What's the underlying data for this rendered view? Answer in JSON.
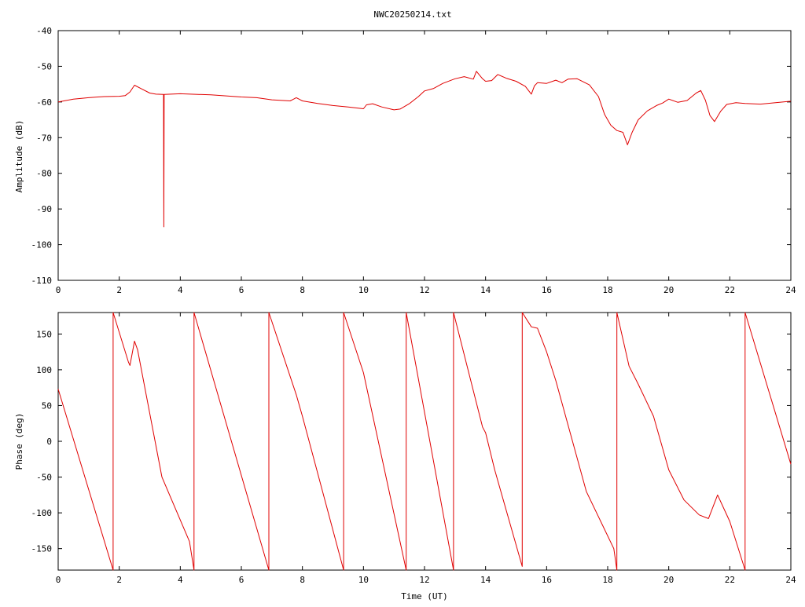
{
  "title": "NWC20250214.txt",
  "colors": {
    "trace": "#e00000",
    "axis": "#000000",
    "background": "#ffffff"
  },
  "chart_data": [
    {
      "type": "line",
      "title": "NWC20250214.txt",
      "xlabel": "",
      "ylabel": "Amplitude (dB)",
      "xlim": [
        0,
        24
      ],
      "ylim": [
        -110,
        -40
      ],
      "xticks": [
        0,
        2,
        4,
        6,
        8,
        10,
        12,
        14,
        16,
        18,
        20,
        22,
        24
      ],
      "xtick_labels": [
        "0",
        "2",
        "4",
        "6",
        "8",
        "10",
        "12",
        "14",
        "16",
        "18",
        "20",
        "22",
        "24"
      ],
      "yticks": [
        -40,
        -50,
        -60,
        -70,
        -80,
        -90,
        -100,
        -110
      ],
      "ytick_labels": [
        "-40",
        "-50",
        "-60",
        "-70",
        "-80",
        "-90",
        "-100",
        "-110"
      ],
      "grid": false,
      "series": [
        {
          "x": [
            0,
            0.5,
            1,
            1.5,
            2,
            2.2,
            2.35,
            2.5,
            2.7,
            3,
            3.2,
            3.45,
            3.46,
            3.47,
            4,
            5,
            6,
            6.5,
            7,
            7.6,
            7.8,
            8,
            8.5,
            9,
            9.5,
            10,
            10.1,
            10.3,
            10.6,
            11,
            11.2,
            11.5,
            11.8,
            12,
            12.3,
            12.6,
            13,
            13.3,
            13.6,
            13.7,
            13.9,
            14,
            14.2,
            14.4,
            14.7,
            15,
            15.3,
            15.5,
            15.6,
            15.7,
            16,
            16.3,
            16.5,
            16.7,
            17,
            17.4,
            17.7,
            17.9,
            18.1,
            18.3,
            18.5,
            18.65,
            18.8,
            19,
            19.3,
            19.6,
            19.8,
            20,
            20.3,
            20.6,
            20.9,
            21.05,
            21.2,
            21.35,
            21.5,
            21.7,
            21.9,
            22.2,
            22.5,
            23,
            23.5,
            24
          ],
          "y": [
            -60,
            -59.2,
            -58.8,
            -58.5,
            -58.4,
            -58.2,
            -57.2,
            -55.3,
            -56.2,
            -57.5,
            -57.8,
            -57.9,
            -95,
            -57.9,
            -57.7,
            -58,
            -58.6,
            -58.8,
            -59.4,
            -59.7,
            -58.8,
            -59.7,
            -60.4,
            -61,
            -61.4,
            -61.9,
            -60.8,
            -60.5,
            -61.4,
            -62.2,
            -62,
            -60.5,
            -58.5,
            -56.9,
            -56.2,
            -54.8,
            -53.5,
            -52.9,
            -53.6,
            -51.4,
            -53.5,
            -54.2,
            -54,
            -52.3,
            -53.4,
            -54.2,
            -55.6,
            -57.8,
            -55.5,
            -54.6,
            -54.8,
            -53.9,
            -54.6,
            -53.6,
            -53.5,
            -55.2,
            -58.5,
            -63.5,
            -66.5,
            -68,
            -68.5,
            -72,
            -68.5,
            -65,
            -62.5,
            -61,
            -60.3,
            -59.2,
            -60.1,
            -59.6,
            -57.5,
            -56.8,
            -59.5,
            -63.8,
            -65.5,
            -62.6,
            -60.7,
            -60.2,
            -60.4,
            -60.6,
            -60.2,
            -59.8
          ]
        }
      ]
    },
    {
      "type": "line",
      "title": "",
      "xlabel": "Time (UT)",
      "ylabel": "Phase (deg)",
      "xlim": [
        0,
        24
      ],
      "ylim": [
        -180,
        180
      ],
      "xticks": [
        0,
        2,
        4,
        6,
        8,
        10,
        12,
        14,
        16,
        18,
        20,
        22,
        24
      ],
      "xtick_labels": [
        "0",
        "2",
        "4",
        "6",
        "8",
        "10",
        "12",
        "14",
        "16",
        "18",
        "20",
        "22",
        "24"
      ],
      "yticks": [
        150,
        100,
        50,
        0,
        -50,
        -100,
        -150
      ],
      "ytick_labels": [
        "150",
        "100",
        "50",
        "0",
        "-50",
        "-100",
        "-150"
      ],
      "grid": false,
      "series": [
        {
          "x": [
            0,
            1.8,
            1.8,
            2.3,
            2.35,
            2.5,
            2.6,
            3.4,
            3.5,
            4.3,
            4.45,
            4.45,
            6.9,
            6.9,
            7.8,
            8,
            9.35,
            9.35,
            10,
            11.4,
            11.4,
            12.95,
            12.95,
            13.9,
            14,
            14.3,
            15.2,
            15.2,
            15.5,
            15.7,
            16,
            16.3,
            17.3,
            18.2,
            18.3,
            18.3,
            18.7,
            19,
            19.5,
            20,
            20.5,
            21,
            21.3,
            21.6,
            22,
            22.5,
            22.5,
            24
          ],
          "y": [
            73,
            -180,
            180,
            111,
            106,
            140,
            128,
            -50,
            -60,
            -140,
            -180,
            180,
            -180,
            180,
            65,
            35,
            -180,
            180,
            96,
            -180,
            180,
            -180,
            180,
            20,
            12,
            -40,
            -175,
            180,
            160,
            158,
            125,
            85,
            -70,
            -150,
            -180,
            180,
            105,
            80,
            35,
            -40,
            -82,
            -103,
            -108,
            -75,
            -112,
            -180,
            180,
            -32
          ]
        }
      ]
    }
  ]
}
